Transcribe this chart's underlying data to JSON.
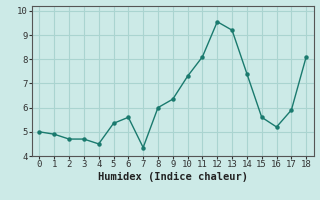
{
  "x": [
    0,
    1,
    2,
    3,
    4,
    5,
    6,
    7,
    8,
    9,
    10,
    11,
    12,
    13,
    14,
    15,
    16,
    17,
    18
  ],
  "y": [
    5.0,
    4.9,
    4.7,
    4.7,
    4.5,
    5.35,
    5.6,
    4.35,
    6.0,
    6.35,
    7.3,
    8.1,
    9.55,
    9.2,
    7.4,
    5.6,
    5.2,
    5.9,
    8.1
  ],
  "line_color": "#1a7a6e",
  "marker_color": "#1a7a6e",
  "bg_color": "#cceae7",
  "grid_color": "#aad4d0",
  "xlabel": "Humidex (Indice chaleur)",
  "xlim": [
    -0.5,
    18.5
  ],
  "ylim": [
    4.0,
    10.2
  ],
  "yticks": [
    4,
    5,
    6,
    7,
    8,
    9,
    10
  ],
  "xticks": [
    0,
    1,
    2,
    3,
    4,
    5,
    6,
    7,
    8,
    9,
    10,
    11,
    12,
    13,
    14,
    15,
    16,
    17,
    18
  ],
  "xlabel_fontsize": 7.5,
  "tick_fontsize": 6.5
}
